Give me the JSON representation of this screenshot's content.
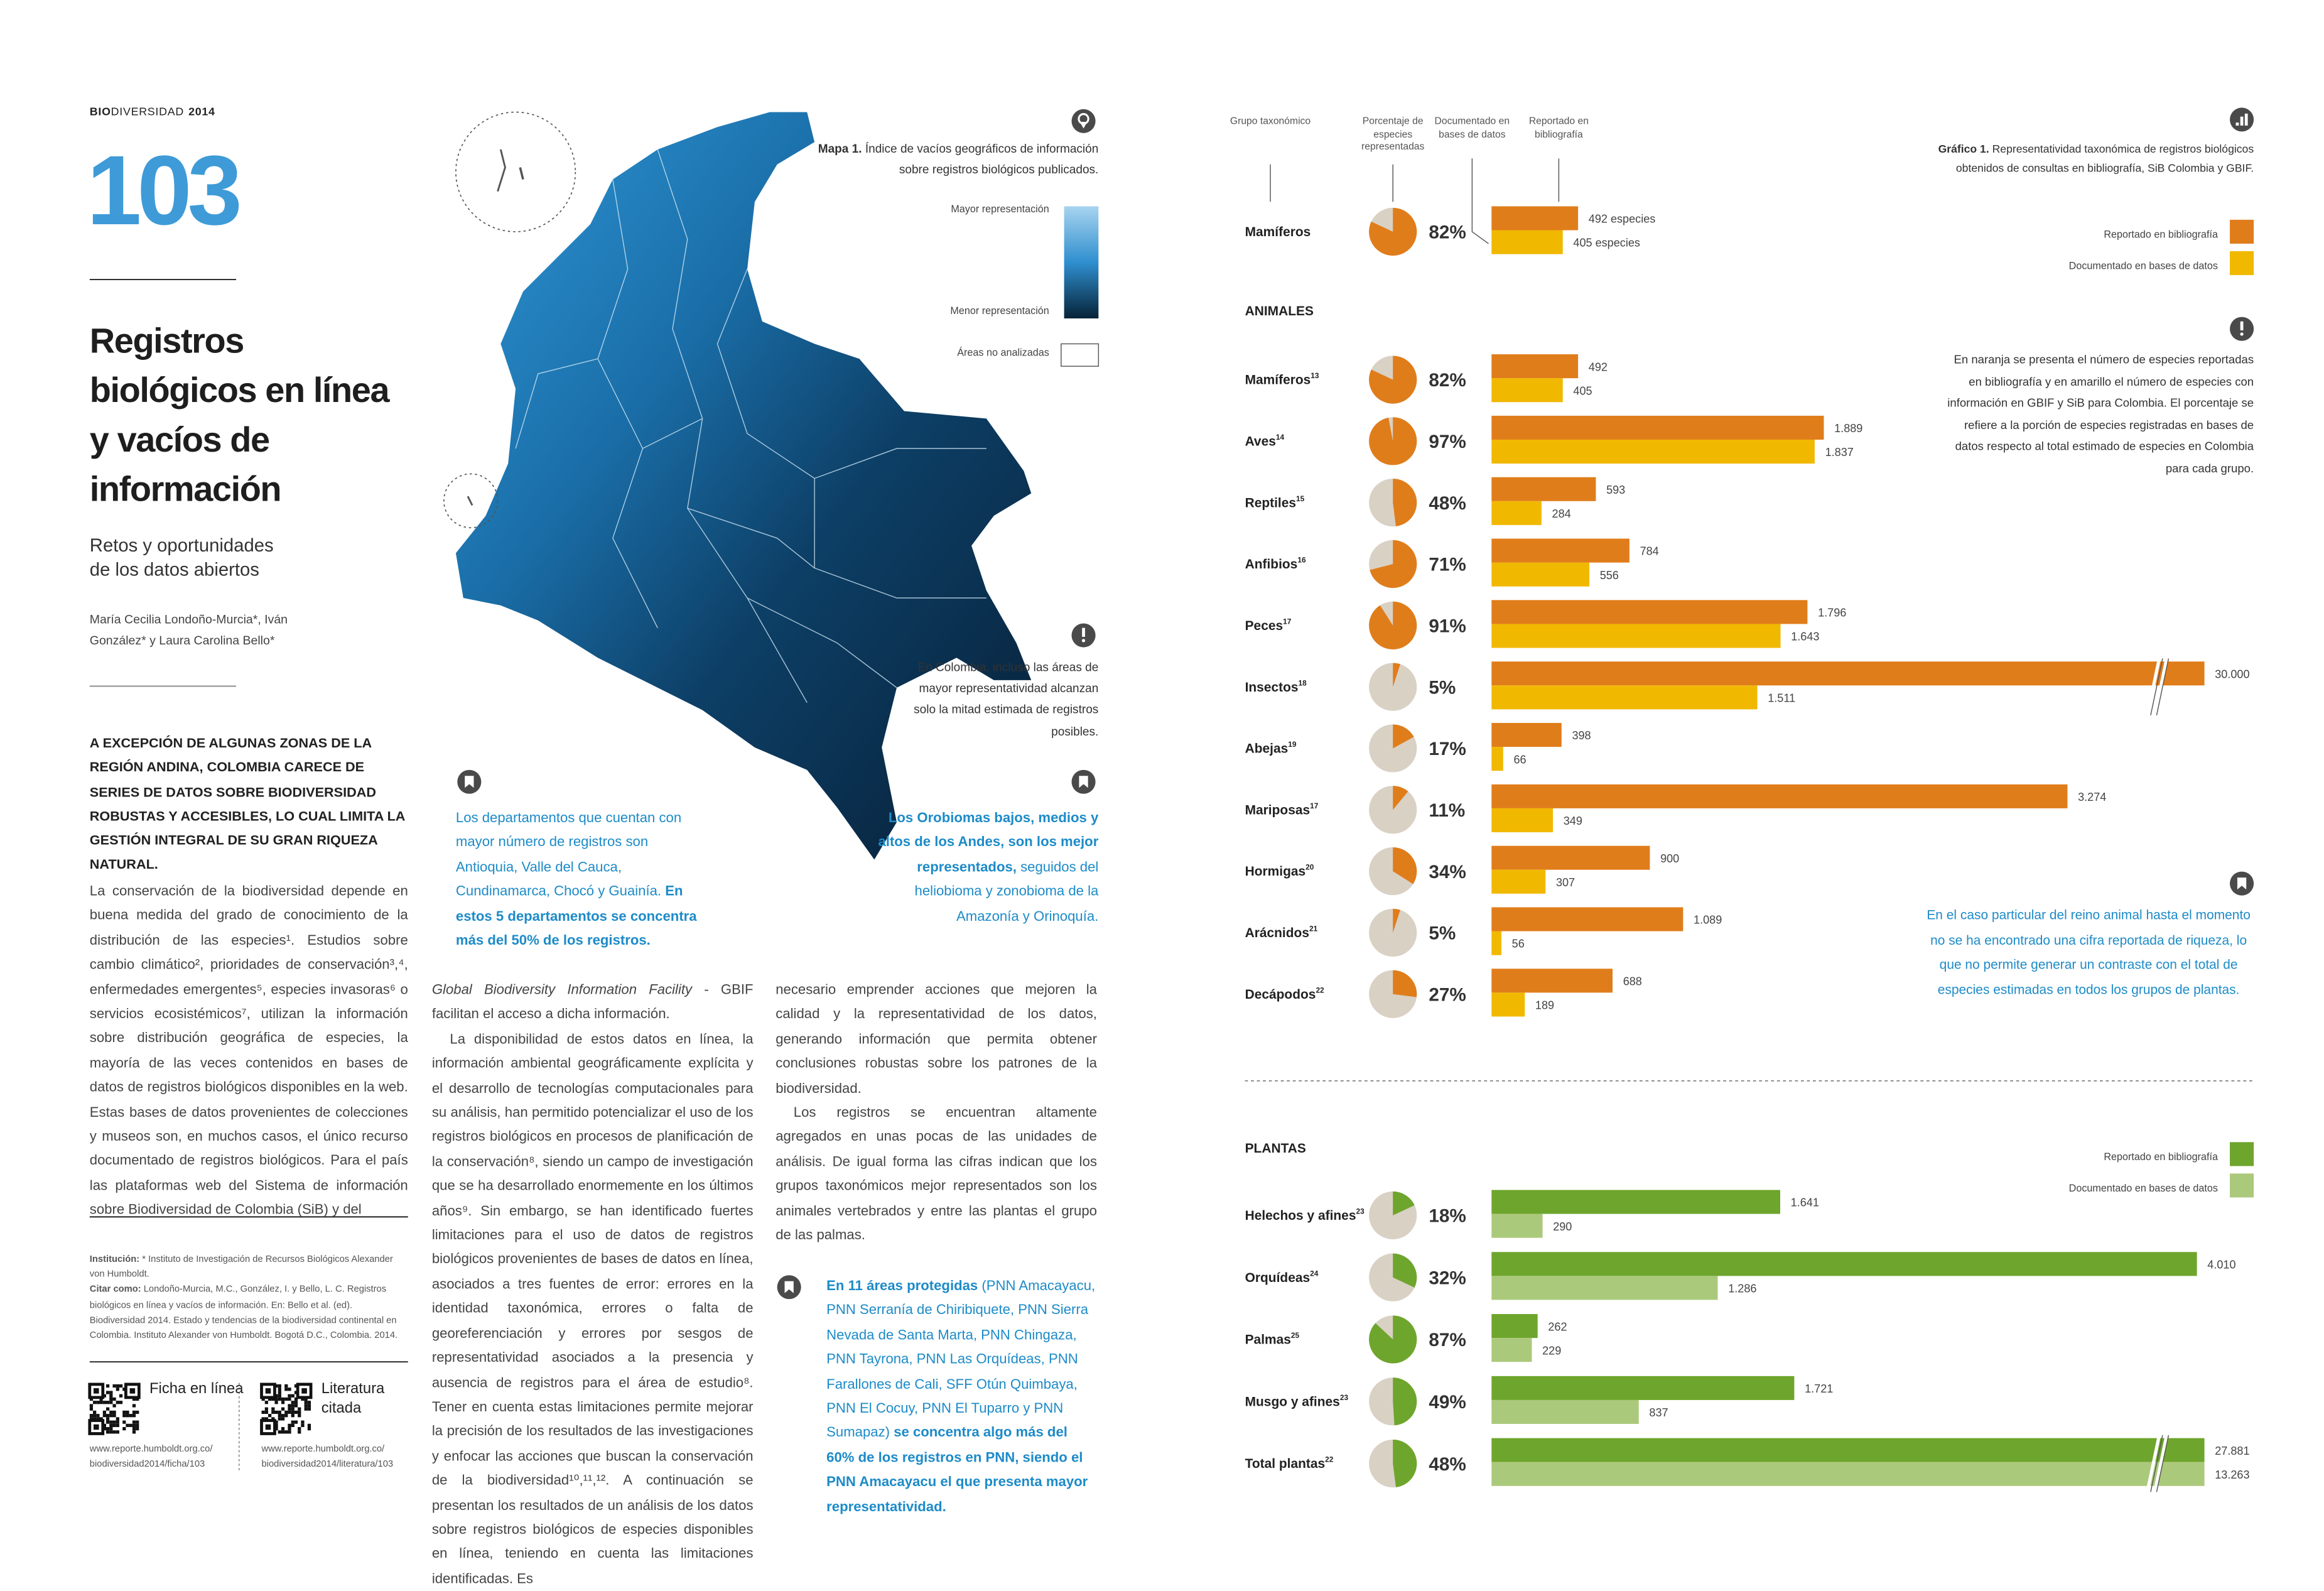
{
  "header": {
    "section_bold": "BIO",
    "section_rest": "DIVERSIDAD",
    "year": "2014",
    "number": "103"
  },
  "article": {
    "title": "Registros biológicos en línea y vacíos de información",
    "subtitle": "Retos y oportunidades de los datos abiertos",
    "authors": "María Cecilia Londoño-Murcia*, Iván González* y Laura Carolina Bello*",
    "lead": "A EXCEPCIÓN DE ALGUNAS ZONAS DE LA REGIÓN ANDINA, COLOMBIA CARECE DE SERIES DE DATOS SOBRE BIODIVERSIDAD ROBUSTAS Y ACCESIBLES, LO CUAL LIMITA LA GESTIÓN INTEGRAL DE SU GRAN RIQUEZA NATURAL.",
    "column_1": [
      "La conservación de la biodiversidad depende en buena medida del grado de conocimiento de la distribución de las especies¹. Estudios sobre cambio climático², prioridades de conservación³,⁴, enfermedades emergentes⁵, especies invasoras⁶ o servicios ecosistémicos⁷, utilizan la información sobre distribución geográfica de especies, la mayoría de las veces contenidos en bases de datos de registros biológicos disponibles en la web. Estas bases de datos provenientes de colecciones y museos son, en muchos casos, el único recurso documentado de registros biológicos. Para el país las plataformas web del Sistema de información sobre Biodiversidad de Colombia (SiB) y del"
    ],
    "column_2": [
      {
        "italic": "Global Biodiversity Information Facility",
        "text": " - GBIF facilitan el acceso a dicha información."
      },
      {
        "italic": "",
        "text": "La disponibilidad de estos datos en línea, la información ambiental geográficamente explícita y el desarrollo de tecnologías computacionales para su análisis, han permitido potencializar el uso de los registros biológicos en procesos de planificación de la conservación⁸, siendo un campo de investigación que se ha desarrollado enormemente en los últimos años⁹. Sin embargo, se han identificado fuertes limitaciones para el uso de datos de registros biológicos provenientes de bases de datos en línea, asociados a tres fuentes de error: errores en la identidad taxonómica, errores o falta de georeferenciación y errores por sesgos de representatividad asociados a la presencia y ausencia de registros para el área de estudio⁸. Tener en cuenta estas limitaciones permite mejorar la precisión de los resultados de las investigaciones y enfocar las acciones que buscan la conservación de la biodiversidad¹⁰,¹¹,¹². A continuación se presentan los resultados de un análisis de los datos sobre registros biológicos de especies disponibles en línea, teniendo en cuenta las limitaciones identificadas. Es"
      }
    ],
    "column_3": [
      "necesario emprender acciones que mejoren la calidad y la representatividad de los datos, generando información que permita obtener conclusiones robustas sobre los patrones de la biodiversidad.",
      "Los registros se encuentran altamente agregados en unas pocas de las unidades de análisis. De igual forma las cifras indican que los grupos taxonómicos mejor representados son los animales vertebrados y entre las plantas el grupo de las palmas."
    ],
    "callout_bottom": {
      "bold_1": "En 11 áreas protegidas",
      "text": " (PNN Amacayacu, PNN Serranía de Chiribiquete, PNN Sierra Nevada de Santa Marta, PNN Chingaza, PNN Tayrona, PNN Las Orquídeas, PNN Farallones de Cali, SFF Otún Quimbaya, PNN El Cocuy, PNN El Tuparro y PNN Sumapaz) ",
      "bold_2": "se concentra algo más del 60% de los registros en PNN, siendo el PNN Amacayacu el que presenta mayor representatividad."
    },
    "credits": [
      {
        "label": "Institución:",
        "text": " * Instituto de Investigación de Recursos Biológicos Alexander von Humboldt."
      },
      {
        "label": "Citar como:",
        "text": " Londoño-Murcia, M.C., González, I. y Bello, L. C. Registros biológicos en línea y vacíos de información. En: Bello et al. (ed). Biodiversidad 2014. Estado y tendencias de la biodiversidad continental en Colombia. Instituto Alexander von Humboldt. Bogotá D.C., Colombia. 2014."
      }
    ],
    "links": [
      {
        "label": "Ficha en línea",
        "url": "www.reporte.humboldt.org.co/ biodiversidad2014/ficha/103"
      },
      {
        "label": "Literatura citada",
        "url": "www.reporte.humboldt.org.co/ biodiversidad2014/literatura/103"
      }
    ]
  },
  "map": {
    "caption_label": "Mapa 1.",
    "caption": " Índice de vacíos geográficos de información sobre registros biológicos publicados.",
    "legend_high": "Mayor representación",
    "legend_low": "Menor representación",
    "legend_na": "Áreas no analizadas",
    "note": "En Colombia, incluso las áreas de mayor representatividad alcanzan solo la mitad estimada de registros posibles.",
    "callout_left": {
      "text": "Los departamentos que cuentan con mayor número de registros son Antioquia, Valle del Cauca, Cundinamarca, Chocó y Guainía. ",
      "bold": "En estos 5 departamentos se concentra más del 50% de los registros."
    },
    "callout_right": {
      "bold": "Los Orobiomas bajos, medios y altos de los Andes, son los mejor representados,",
      "text": " seguidos del heliobioma y zonobioma de la Amazonía y Orinoquía."
    }
  },
  "chart": {
    "caption_label": "Gráfico 1.",
    "caption": " Representatividad taxonómica de registros biológicos obtenidos de consultas en bibliografía, SiB Colombia y GBIF.",
    "column_headers": [
      "Grupo taxonómico",
      "Porcentaje de especies representadas",
      "Documentado en bases de datos",
      "Reportado en bibliografía"
    ],
    "legend": [
      "Reportado en bibliografía",
      "Documentado en bases de datos"
    ],
    "colors": {
      "bib": "#e07d1b",
      "db": "#f1b800",
      "plants_bib": "#6ea52c",
      "plants_db": "#abc97b",
      "pie_bg": "#d9d1c4"
    },
    "example": {
      "name": "Mamíferos",
      "pct": 82,
      "pct_label": "82%",
      "bib": 492,
      "bib_label": "492 especies",
      "db": 405,
      "db_label": "405 especies"
    },
    "note": "En naranja se presenta el número de especies reportadas en bibliografía y en amarillo el número de especies con información en GBIF y SiB para Colombia. El porcentaje se refiere a la porción de especies registradas en bases de datos respecto al total estimado de especies en Colombia para cada grupo.",
    "blue_note": "En el caso particular del reino animal hasta el momento no se ha encontrado una cifra reportada de riqueza, lo que no permite generar un contraste con el total de especies estimadas en todos los grupos de plantas.",
    "animals": {
      "heading": "ANIMALES",
      "groups": [
        {
          "name": "Mamíferos",
          "ref": "13",
          "pct": 82,
          "pct_label": "82%",
          "bib": 492,
          "bib_label": "492",
          "db": 405,
          "db_label": "405"
        },
        {
          "name": "Aves",
          "ref": "14",
          "pct": 97,
          "pct_label": "97%",
          "bib": 1889,
          "bib_label": "1.889",
          "db": 1837,
          "db_label": "1.837"
        },
        {
          "name": "Reptiles",
          "ref": "15",
          "pct": 48,
          "pct_label": "48%",
          "bib": 593,
          "bib_label": "593",
          "db": 284,
          "db_label": "284"
        },
        {
          "name": "Anfibios",
          "ref": "16",
          "pct": 71,
          "pct_label": "71%",
          "bib": 784,
          "bib_label": "784",
          "db": 556,
          "db_label": "556"
        },
        {
          "name": "Peces",
          "ref": "17",
          "pct": 91,
          "pct_label": "91%",
          "bib": 1796,
          "bib_label": "1.796",
          "db": 1643,
          "db_label": "1.643"
        },
        {
          "name": "Insectos",
          "ref": "18",
          "pct": 5,
          "pct_label": "5%",
          "bib": 30000,
          "bib_label": "30.000",
          "db": 1511,
          "db_label": "1.511"
        },
        {
          "name": "Abejas",
          "ref": "19",
          "pct": 17,
          "pct_label": "17%",
          "bib": 398,
          "bib_label": "398",
          "db": 66,
          "db_label": "66"
        },
        {
          "name": "Mariposas",
          "ref": "17",
          "pct": 11,
          "pct_label": "11%",
          "bib": 3274,
          "bib_label": "3.274",
          "db": 349,
          "db_label": "349"
        },
        {
          "name": "Hormigas",
          "ref": "20",
          "pct": 34,
          "pct_label": "34%",
          "bib": 900,
          "bib_label": "900",
          "db": 307,
          "db_label": "307"
        },
        {
          "name": "Arácnidos",
          "ref": "21",
          "pct": 5,
          "pct_label": "5%",
          "bib": 1089,
          "bib_label": "1.089",
          "db": 56,
          "db_label": "56"
        },
        {
          "name": "Decápodos",
          "ref": "22",
          "pct": 27,
          "pct_label": "27%",
          "bib": 688,
          "bib_label": "688",
          "db": 189,
          "db_label": "189"
        }
      ]
    },
    "plants": {
      "heading": "PLANTAS",
      "groups": [
        {
          "name": "Helechos y afines",
          "ref": "23",
          "pct": 18,
          "pct_label": "18%",
          "bib": 1641,
          "bib_label": "1.641",
          "db": 290,
          "db_label": "290"
        },
        {
          "name": "Orquídeas",
          "ref": "24",
          "pct": 32,
          "pct_label": "32%",
          "bib": 4010,
          "bib_label": "4.010",
          "db": 1286,
          "db_label": "1.286"
        },
        {
          "name": "Palmas",
          "ref": "25",
          "pct": 87,
          "pct_label": "87%",
          "bib": 262,
          "bib_label": "262",
          "db": 229,
          "db_label": "229"
        },
        {
          "name": "Musgo y afines",
          "ref": "23",
          "pct": 49,
          "pct_label": "49%",
          "bib": 1721,
          "bib_label": "1.721",
          "db": 837,
          "db_label": "837"
        },
        {
          "name": "Total plantas",
          "ref": "22",
          "pct": 48,
          "pct_label": "48%",
          "bib": 27881,
          "bib_label": "27.881",
          "db": 13263,
          "db_label": "13.263"
        }
      ]
    }
  }
}
